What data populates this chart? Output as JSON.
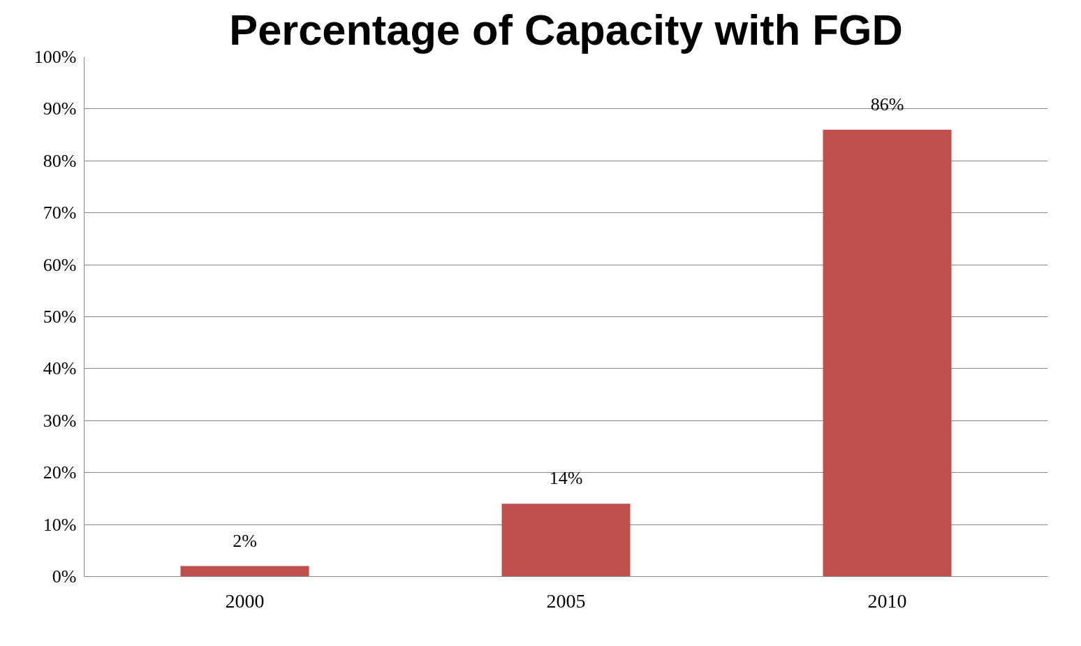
{
  "chart_data": {
    "type": "bar",
    "title": "Percentage of Capacity with FGD",
    "categories": [
      "2000",
      "2005",
      "2010"
    ],
    "values": [
      2,
      14,
      86
    ],
    "color": "#c0504d",
    "value_labels": [
      "2%",
      "14%",
      "86%"
    ],
    "ylim": [
      0,
      100
    ],
    "yticks": [
      {
        "value": 0,
        "label": "0%"
      },
      {
        "value": 10,
        "label": "10%"
      },
      {
        "value": 20,
        "label": "20%"
      },
      {
        "value": 30,
        "label": "30%"
      },
      {
        "value": 40,
        "label": "40%"
      },
      {
        "value": 50,
        "label": "50%"
      },
      {
        "value": 60,
        "label": "60%"
      },
      {
        "value": 70,
        "label": "70%"
      },
      {
        "value": 80,
        "label": "80%"
      },
      {
        "value": 90,
        "label": "90%"
      },
      {
        "value": 100,
        "label": "100%"
      }
    ],
    "grid": "y"
  }
}
